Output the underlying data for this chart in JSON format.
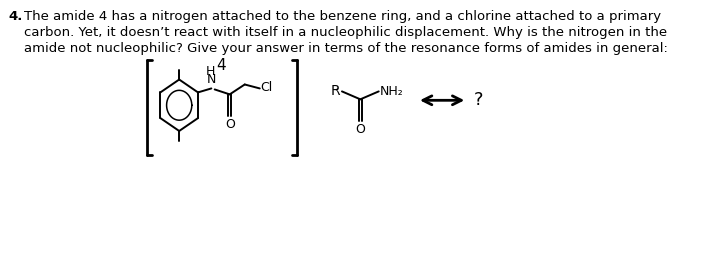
{
  "title_number": "4.",
  "text_line1": "The amide 4 has a nitrogen attached to the benzene ring, and a chlorine attached to a primary",
  "text_line2": "carbon. Yet, it doesn’t react with itself in a nucleophilic displacement. Why is the nitrogen in the",
  "text_line3": "amide not nucleophilic? Give your answer in terms of the resonance forms of amides in general:",
  "label_4": "4",
  "question_mark": "?",
  "text_color": "#000000",
  "bg_color": "#ffffff",
  "font_size_text": 9.5,
  "font_size_chem": 9.0,
  "font_size_label": 11
}
